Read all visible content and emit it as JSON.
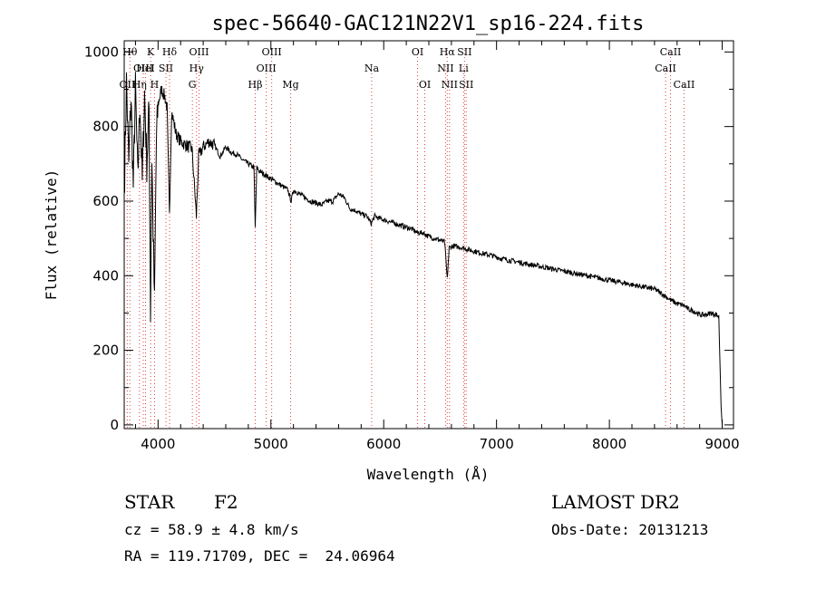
{
  "chart_data": {
    "type": "line",
    "title": "spec-56640-GAC121N22V1_sp16-224.fits",
    "xlabel": "Wavelength (Å)",
    "ylabel": "Flux (relative)",
    "xlim": [
      3700,
      9100
    ],
    "ylim": [
      -10,
      1030
    ],
    "xticks": [
      4000,
      5000,
      6000,
      7000,
      8000,
      9000
    ],
    "yticks": [
      0,
      200,
      400,
      600,
      800,
      1000
    ],
    "grid": false,
    "series": [
      {
        "points": [
          [
            3700,
            620
          ],
          [
            3720,
            920
          ],
          [
            3740,
            700
          ],
          [
            3760,
            880
          ],
          [
            3780,
            640
          ],
          [
            3800,
            900
          ],
          [
            3820,
            660
          ],
          [
            3840,
            870
          ],
          [
            3860,
            650
          ],
          [
            3880,
            890
          ],
          [
            3900,
            700
          ],
          [
            3920,
            850
          ],
          [
            3933,
            300
          ],
          [
            3945,
            720
          ],
          [
            3968,
            320
          ],
          [
            3985,
            760
          ],
          [
            4000,
            860
          ],
          [
            4030,
            900
          ],
          [
            4060,
            880
          ],
          [
            4080,
            850
          ],
          [
            4101,
            560
          ],
          [
            4120,
            840
          ],
          [
            4160,
            780
          ],
          [
            4200,
            760
          ],
          [
            4250,
            750
          ],
          [
            4300,
            740
          ],
          [
            4340,
            560
          ],
          [
            4360,
            720
          ],
          [
            4400,
            745
          ],
          [
            4450,
            760
          ],
          [
            4500,
            750
          ],
          [
            4550,
            720
          ],
          [
            4600,
            745
          ],
          [
            4650,
            730
          ],
          [
            4700,
            725
          ],
          [
            4750,
            710
          ],
          [
            4800,
            700
          ],
          [
            4850,
            690
          ],
          [
            4861,
            530
          ],
          [
            4875,
            690
          ],
          [
            4900,
            680
          ],
          [
            4950,
            670
          ],
          [
            5000,
            660
          ],
          [
            5050,
            650
          ],
          [
            5100,
            640
          ],
          [
            5150,
            630
          ],
          [
            5180,
            600
          ],
          [
            5200,
            630
          ],
          [
            5250,
            620
          ],
          [
            5300,
            610
          ],
          [
            5350,
            600
          ],
          [
            5400,
            595
          ],
          [
            5450,
            590
          ],
          [
            5500,
            600
          ],
          [
            5550,
            600
          ],
          [
            5600,
            620
          ],
          [
            5650,
            610
          ],
          [
            5700,
            580
          ],
          [
            5750,
            575
          ],
          [
            5800,
            565
          ],
          [
            5850,
            560
          ],
          [
            5890,
            540
          ],
          [
            5920,
            560
          ],
          [
            5950,
            555
          ],
          [
            6000,
            550
          ],
          [
            6050,
            545
          ],
          [
            6100,
            540
          ],
          [
            6150,
            535
          ],
          [
            6200,
            530
          ],
          [
            6250,
            525
          ],
          [
            6300,
            515
          ],
          [
            6350,
            515
          ],
          [
            6400,
            505
          ],
          [
            6450,
            500
          ],
          [
            6500,
            495
          ],
          [
            6540,
            490
          ],
          [
            6563,
            390
          ],
          [
            6580,
            475
          ],
          [
            6620,
            480
          ],
          [
            6650,
            478
          ],
          [
            6700,
            475
          ],
          [
            6750,
            470
          ],
          [
            6800,
            466
          ],
          [
            6850,
            462
          ],
          [
            6900,
            458
          ],
          [
            6950,
            455
          ],
          [
            7000,
            450
          ],
          [
            7100,
            442
          ],
          [
            7200,
            436
          ],
          [
            7300,
            430
          ],
          [
            7400,
            424
          ],
          [
            7500,
            418
          ],
          [
            7600,
            412
          ],
          [
            7700,
            406
          ],
          [
            7800,
            400
          ],
          [
            7900,
            394
          ],
          [
            8000,
            388
          ],
          [
            8100,
            382
          ],
          [
            8200,
            376
          ],
          [
            8300,
            370
          ],
          [
            8400,
            364
          ],
          [
            8498,
            345
          ],
          [
            8542,
            335
          ],
          [
            8600,
            325
          ],
          [
            8662,
            320
          ],
          [
            8700,
            310
          ],
          [
            8750,
            305
          ],
          [
            8800,
            295
          ],
          [
            8850,
            295
          ],
          [
            8900,
            300
          ],
          [
            8950,
            295
          ],
          [
            8970,
            290
          ],
          [
            8990,
            50
          ],
          [
            9000,
            0
          ]
        ]
      }
    ],
    "lines": [
      {
        "label": "OII",
        "wl": 3727,
        "row": 2
      },
      {
        "label": "Hθ",
        "wl": 3750,
        "row": 0
      },
      {
        "label": "Hη",
        "wl": 3835,
        "row": 2
      },
      {
        "label": "OIII",
        "wl": 3869,
        "row": 1
      },
      {
        "label": "HeI",
        "wl": 3889,
        "row": 1
      },
      {
        "label": "K",
        "wl": 3934,
        "row": 0
      },
      {
        "label": "SII",
        "wl": 4070,
        "row": 1
      },
      {
        "label": "H",
        "wl": 3969,
        "row": 2
      },
      {
        "label": "Hδ",
        "wl": 4102,
        "row": 0
      },
      {
        "label": "G",
        "wl": 4304,
        "row": 2
      },
      {
        "label": "Hγ",
        "wl": 4341,
        "row": 1
      },
      {
        "label": "OIII",
        "wl": 4363,
        "row": 0
      },
      {
        "label": "Hβ",
        "wl": 4861,
        "row": 2
      },
      {
        "label": "OIII",
        "wl": 4959,
        "row": 1
      },
      {
        "label": "OIII",
        "wl": 5007,
        "row": 0
      },
      {
        "label": "Mg",
        "wl": 5175,
        "row": 2
      },
      {
        "label": "Na",
        "wl": 5893,
        "row": 1
      },
      {
        "label": "OI",
        "wl": 6300,
        "row": 0
      },
      {
        "label": "OI",
        "wl": 6364,
        "row": 2
      },
      {
        "label": "NII",
        "wl": 6548,
        "row": 1
      },
      {
        "label": "Hα",
        "wl": 6563,
        "row": 0
      },
      {
        "label": "NII",
        "wl": 6583,
        "row": 2
      },
      {
        "label": "Li",
        "wl": 6708,
        "row": 1
      },
      {
        "label": "SII",
        "wl": 6716,
        "row": 0
      },
      {
        "label": "SII",
        "wl": 6731,
        "row": 2
      },
      {
        "label": "CaII",
        "wl": 8498,
        "row": 1
      },
      {
        "label": "CaII",
        "wl": 8542,
        "row": 0
      },
      {
        "label": "CaII",
        "wl": 8662,
        "row": 2
      }
    ],
    "line_color": "#d94040"
  },
  "info": {
    "object_class": "STAR",
    "subclass": "F2",
    "survey": "LAMOST DR2",
    "redshift": "cz = 58.9 ± 4.8 km/s",
    "obs_date": "Obs-Date: 20131213",
    "coords": "RA = 119.71709, DEC =  24.06964"
  }
}
